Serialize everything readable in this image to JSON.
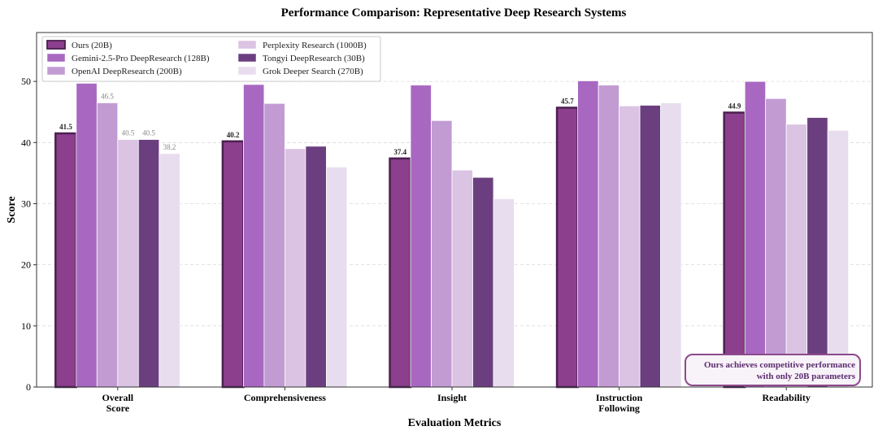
{
  "chart_data": {
    "type": "bar",
    "title": "Performance Comparison: Representative Deep Research Systems",
    "xlabel": "Evaluation Metrics",
    "ylabel": "Score",
    "ylim": [
      0,
      58
    ],
    "yticks": [
      0,
      10,
      20,
      30,
      40,
      50
    ],
    "grid": "horizontal dashed",
    "legend_position": "top-left",
    "categories": [
      [
        "Overall",
        "Score"
      ],
      [
        "Comprehensiveness"
      ],
      [
        "Insight"
      ],
      [
        "Instruction",
        "Following"
      ],
      [
        "Readability"
      ]
    ],
    "series": [
      {
        "name": "Ours (20B)",
        "color": "#8c3f8c",
        "values": [
          41.5,
          40.2,
          37.4,
          45.7,
          44.9
        ],
        "highlight": true
      },
      {
        "name": "Gemini-2.5-Pro DeepResearch (128B)",
        "color": "#a868c2",
        "values": [
          49.7,
          49.5,
          49.4,
          50.1,
          50.0
        ]
      },
      {
        "name": "OpenAI DeepResearch (200B)",
        "color": "#c29bd3",
        "values": [
          46.5,
          46.4,
          43.6,
          49.4,
          47.2
        ]
      },
      {
        "name": "Perplexity Research (1000B)",
        "color": "#dbc3e3",
        "values": [
          40.5,
          39.0,
          35.5,
          46.0,
          43.0
        ]
      },
      {
        "name": "Tongyi DeepResearch (30B)",
        "color": "#6b3f7f",
        "values": [
          40.5,
          39.4,
          34.3,
          46.1,
          44.1
        ]
      },
      {
        "name": "Grok Deeper Search (270B)",
        "color": "#e8ddee",
        "values": [
          38.2,
          36.0,
          30.8,
          46.5,
          42.0
        ]
      }
    ],
    "data_labels": [
      {
        "series": 0,
        "category": 0,
        "text": "41.5"
      },
      {
        "series": 2,
        "category": 0,
        "text": "46.5"
      },
      {
        "series": 3,
        "category": 0,
        "text": "40.5"
      },
      {
        "series": 4,
        "category": 0,
        "text": "40.5"
      },
      {
        "series": 5,
        "category": 0,
        "text": "38.2"
      },
      {
        "series": 0,
        "category": 1,
        "text": "40.2"
      },
      {
        "series": 0,
        "category": 2,
        "text": "37.4"
      },
      {
        "series": 0,
        "category": 3,
        "text": "45.7"
      },
      {
        "series": 0,
        "category": 4,
        "text": "44.9"
      }
    ],
    "annotation": {
      "lines": [
        "Ours achieves competitive performance",
        "with only 20B parameters"
      ],
      "position": "bottom-right"
    }
  }
}
